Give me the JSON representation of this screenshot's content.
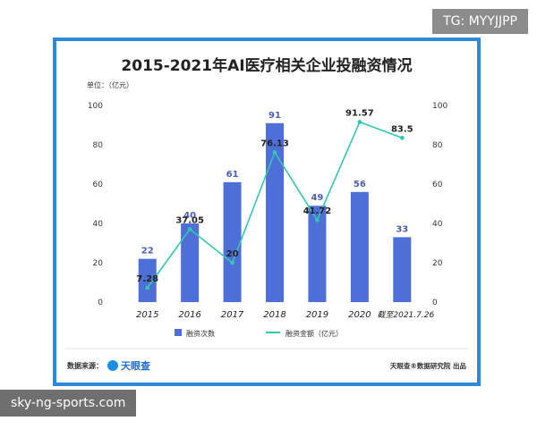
{
  "corner_tag": "TG: MYYJJPP",
  "watermark": "sky-ng-sports.com",
  "colors": {
    "frame": "#2f89d6",
    "bar": "#4e6fd8",
    "line": "#34c6b0"
  },
  "chart_data": {
    "type": "bar",
    "title": "2015-2021年AI医疗相关企业投融资情况",
    "unit_label": "单位：（亿元）",
    "categories": [
      "2015",
      "2016",
      "2017",
      "2018",
      "2019",
      "2020",
      "截至2021.7.26"
    ],
    "series": [
      {
        "name": "融资次数",
        "type": "bar",
        "axis": "left",
        "values": [
          22,
          40,
          61,
          91,
          49,
          56,
          33
        ]
      },
      {
        "name": "融资金额（亿元）",
        "type": "line",
        "axis": "right",
        "values": [
          7.28,
          37.05,
          20,
          76.13,
          41.72,
          91.57,
          83.5
        ]
      }
    ],
    "value_labels_bar": [
      "22",
      "40",
      "61",
      "91",
      "49",
      "56",
      "33"
    ],
    "value_labels_line": [
      "7.28",
      "37.05",
      "20",
      "76.13",
      "41.72",
      "91.57",
      "83.5"
    ],
    "y_left": {
      "range": [
        0,
        100
      ],
      "ticks": [
        "0",
        "20",
        "40",
        "60",
        "80",
        "100"
      ]
    },
    "y_right": {
      "range": [
        0,
        100
      ],
      "ticks": [
        "0",
        "20",
        "40",
        "60",
        "80",
        "100"
      ]
    },
    "grid": false,
    "legend_position": "bottom"
  },
  "footer": {
    "source_label": "数据来源：",
    "source_brand": "天眼查",
    "credit": "天眼查®数据研究院 出品"
  }
}
